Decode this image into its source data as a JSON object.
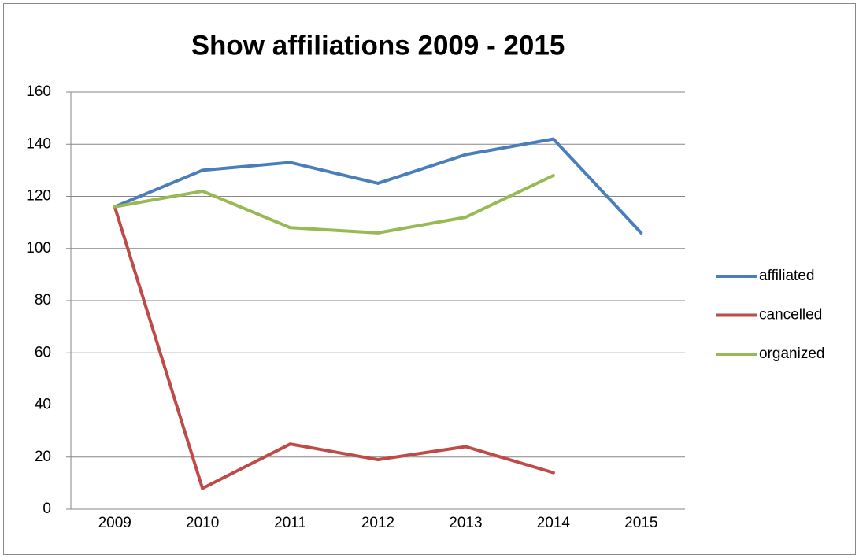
{
  "chart_data": {
    "type": "line",
    "title": "Show affiliations 2009 - 2015",
    "categories": [
      "2009",
      "2010",
      "2011",
      "2012",
      "2013",
      "2014",
      "2015"
    ],
    "series": [
      {
        "name": "affiliated",
        "color": "#4a7ebb",
        "values": [
          116,
          130,
          133,
          125,
          136,
          142,
          106
        ]
      },
      {
        "name": "cancelled",
        "color": "#be4b48",
        "values": [
          116,
          8,
          25,
          19,
          24,
          14,
          null
        ]
      },
      {
        "name": "organized",
        "color": "#98b954",
        "values": [
          116,
          122,
          108,
          106,
          112,
          128,
          null
        ]
      }
    ],
    "ylim": [
      0,
      160
    ],
    "yticks": [
      0,
      20,
      40,
      60,
      80,
      100,
      120,
      140,
      160
    ],
    "grid": true,
    "legend": "right"
  }
}
